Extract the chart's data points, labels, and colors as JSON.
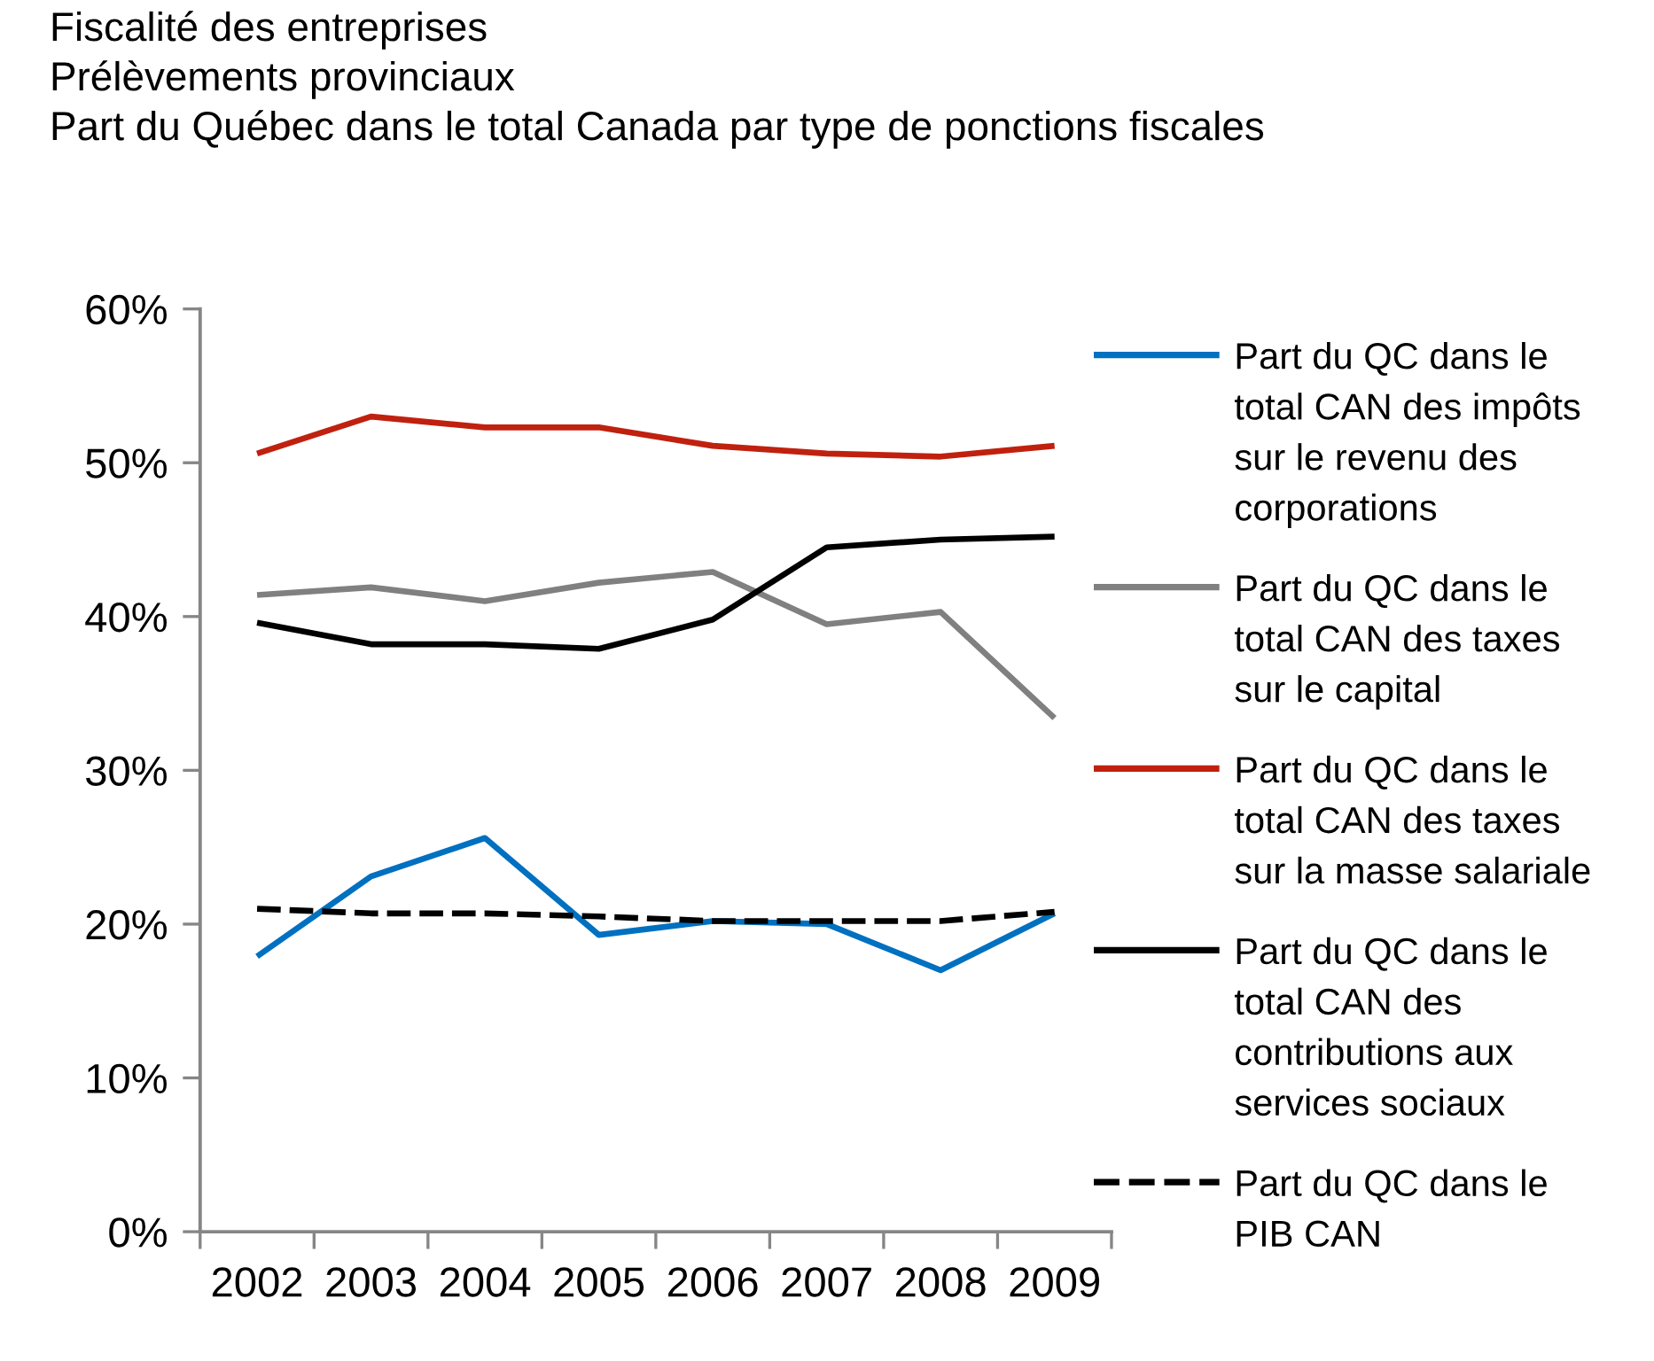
{
  "chart_data": {
    "type": "line",
    "title": "Fiscalité des entreprises",
    "subtitle": "Prélèvements provinciaux",
    "annotations": [
      "Part du Québec dans le total Canada par type de ponctions fiscales"
    ],
    "categories": [
      "2002",
      "2003",
      "2004",
      "2005",
      "2006",
      "2007",
      "2008",
      "2009"
    ],
    "series": [
      {
        "name": "Part du QC dans le total CAN des impôts sur le revenu des corporations",
        "color": "#0070c0",
        "values": [
          17.9,
          23.1,
          25.6,
          19.3,
          20.2,
          20.0,
          17.0,
          20.7
        ]
      },
      {
        "name": "Part du QC dans le total CAN des taxes sur le capital",
        "color": "#808080",
        "values": [
          41.4,
          41.9,
          41.0,
          42.2,
          42.9,
          39.5,
          40.3,
          33.4
        ]
      },
      {
        "name": "Part du QC dans le total CAN des taxes sur la masse salariale",
        "color": "#c0210f",
        "values": [
          50.6,
          53.0,
          52.3,
          52.3,
          51.1,
          50.6,
          50.4,
          51.1
        ]
      },
      {
        "name": "Part du QC dans le total CAN des contributions aux services sociaux",
        "color": "#000000",
        "values": [
          39.6,
          38.2,
          38.2,
          37.9,
          39.8,
          44.5,
          45.0,
          45.2
        ]
      },
      {
        "name": "Part du QC dans le PIB CAN",
        "color": "#000000",
        "line_style": "dashed",
        "values": [
          21.0,
          20.7,
          20.7,
          20.5,
          20.2,
          20.2,
          20.2,
          20.8
        ]
      }
    ],
    "ylim": [
      0,
      60
    ],
    "yticks": [
      {
        "value": 0,
        "label": "0%"
      },
      {
        "value": 10,
        "label": "10%"
      },
      {
        "value": 20,
        "label": "20%"
      },
      {
        "value": 30,
        "label": "30%"
      },
      {
        "value": 40,
        "label": "40%"
      },
      {
        "value": 50,
        "label": "50%"
      },
      {
        "value": 60,
        "label": "60%"
      }
    ],
    "legend": "right"
  }
}
